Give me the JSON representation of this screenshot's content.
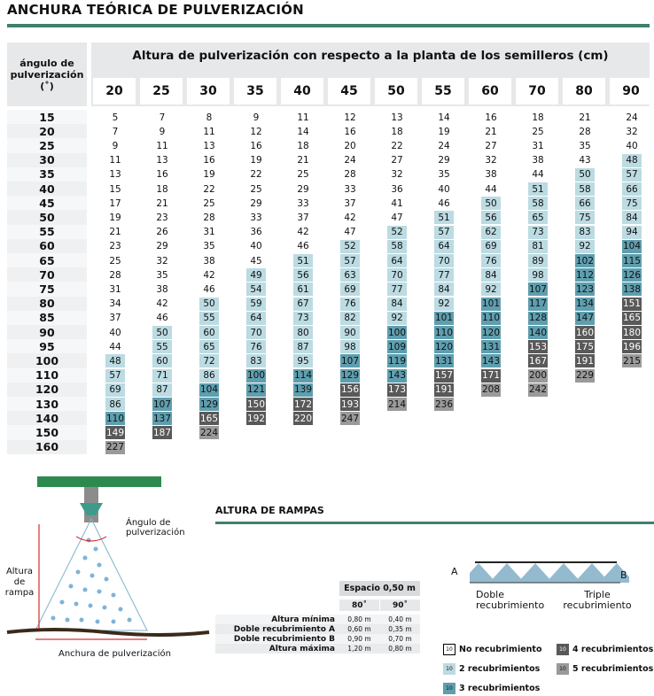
{
  "title": "ANCHURA TEÓRICA DE PULVERIZACIÓN",
  "table": {
    "row_header": "ángulo de pulverización (˚)",
    "column_header": "Altura de pulverización con respecto a la planta de los semilleros (cm)",
    "columns": [
      20,
      25,
      30,
      35,
      40,
      45,
      50,
      55,
      60,
      70,
      80,
      90
    ],
    "rows": [
      {
        "angle": 15,
        "values": [
          5,
          7,
          8,
          9,
          11,
          12,
          13,
          14,
          16,
          18,
          21,
          24
        ],
        "levels": [
          0,
          0,
          0,
          0,
          0,
          0,
          0,
          0,
          0,
          0,
          0,
          0
        ]
      },
      {
        "angle": 20,
        "values": [
          7,
          9,
          11,
          12,
          14,
          16,
          18,
          19,
          21,
          25,
          28,
          32
        ],
        "levels": [
          0,
          0,
          0,
          0,
          0,
          0,
          0,
          0,
          0,
          0,
          0,
          0
        ]
      },
      {
        "angle": 25,
        "values": [
          9,
          11,
          13,
          16,
          18,
          20,
          22,
          24,
          27,
          31,
          35,
          40
        ],
        "levels": [
          0,
          0,
          0,
          0,
          0,
          0,
          0,
          0,
          0,
          0,
          0,
          0
        ]
      },
      {
        "angle": 30,
        "values": [
          11,
          13,
          16,
          19,
          21,
          24,
          27,
          29,
          32,
          38,
          43,
          48
        ],
        "levels": [
          0,
          0,
          0,
          0,
          0,
          0,
          0,
          0,
          0,
          0,
          0,
          1
        ]
      },
      {
        "angle": 35,
        "values": [
          13,
          16,
          19,
          22,
          25,
          28,
          32,
          35,
          38,
          44,
          50,
          57
        ],
        "levels": [
          0,
          0,
          0,
          0,
          0,
          0,
          0,
          0,
          0,
          0,
          1,
          1
        ]
      },
      {
        "angle": 40,
        "values": [
          15,
          18,
          22,
          25,
          29,
          33,
          36,
          40,
          44,
          51,
          58,
          66
        ],
        "levels": [
          0,
          0,
          0,
          0,
          0,
          0,
          0,
          0,
          0,
          1,
          1,
          1
        ]
      },
      {
        "angle": 45,
        "values": [
          17,
          21,
          25,
          29,
          33,
          37,
          41,
          46,
          50,
          58,
          66,
          75
        ],
        "levels": [
          0,
          0,
          0,
          0,
          0,
          0,
          0,
          0,
          1,
          1,
          1,
          1
        ]
      },
      {
        "angle": 50,
        "values": [
          19,
          23,
          28,
          33,
          37,
          42,
          47,
          51,
          56,
          65,
          75,
          84
        ],
        "levels": [
          0,
          0,
          0,
          0,
          0,
          0,
          0,
          1,
          1,
          1,
          1,
          1
        ]
      },
      {
        "angle": 55,
        "values": [
          21,
          26,
          31,
          36,
          42,
          47,
          52,
          57,
          62,
          73,
          83,
          94
        ],
        "levels": [
          0,
          0,
          0,
          0,
          0,
          0,
          1,
          1,
          1,
          1,
          1,
          1
        ]
      },
      {
        "angle": 60,
        "values": [
          23,
          29,
          35,
          40,
          46,
          52,
          58,
          64,
          69,
          81,
          92,
          104
        ],
        "levels": [
          0,
          0,
          0,
          0,
          0,
          1,
          1,
          1,
          1,
          1,
          1,
          2
        ]
      },
      {
        "angle": 65,
        "values": [
          25,
          32,
          38,
          45,
          51,
          57,
          64,
          70,
          76,
          89,
          102,
          115
        ],
        "levels": [
          0,
          0,
          0,
          0,
          1,
          1,
          1,
          1,
          1,
          1,
          2,
          2
        ]
      },
      {
        "angle": 70,
        "values": [
          28,
          35,
          42,
          49,
          56,
          63,
          70,
          77,
          84,
          98,
          112,
          126
        ],
        "levels": [
          0,
          0,
          0,
          1,
          1,
          1,
          1,
          1,
          1,
          1,
          2,
          2
        ]
      },
      {
        "angle": 75,
        "values": [
          31,
          38,
          46,
          54,
          61,
          69,
          77,
          84,
          92,
          107,
          123,
          138
        ],
        "levels": [
          0,
          0,
          0,
          1,
          1,
          1,
          1,
          1,
          1,
          2,
          2,
          2
        ]
      },
      {
        "angle": 80,
        "values": [
          34,
          42,
          50,
          59,
          67,
          76,
          84,
          92,
          101,
          117,
          134,
          151
        ],
        "levels": [
          0,
          0,
          1,
          1,
          1,
          1,
          1,
          1,
          2,
          2,
          2,
          3
        ]
      },
      {
        "angle": 85,
        "values": [
          37,
          46,
          55,
          64,
          73,
          82,
          92,
          101,
          110,
          128,
          147,
          165
        ],
        "levels": [
          0,
          0,
          1,
          1,
          1,
          1,
          1,
          2,
          2,
          2,
          2,
          3
        ]
      },
      {
        "angle": 90,
        "values": [
          40,
          50,
          60,
          70,
          80,
          90,
          100,
          110,
          120,
          140,
          160,
          180
        ],
        "levels": [
          0,
          1,
          1,
          1,
          1,
          1,
          2,
          2,
          2,
          2,
          3,
          3
        ]
      },
      {
        "angle": 95,
        "values": [
          44,
          55,
          65,
          76,
          87,
          98,
          109,
          120,
          131,
          153,
          175,
          196
        ],
        "levels": [
          0,
          1,
          1,
          1,
          1,
          1,
          2,
          2,
          2,
          3,
          3,
          3
        ]
      },
      {
        "angle": 100,
        "values": [
          48,
          60,
          72,
          83,
          95,
          107,
          119,
          131,
          143,
          167,
          191,
          215
        ],
        "levels": [
          1,
          1,
          1,
          1,
          1,
          2,
          2,
          2,
          2,
          3,
          3,
          4
        ]
      },
      {
        "angle": 110,
        "values": [
          57,
          71,
          86,
          100,
          114,
          129,
          143,
          157,
          171,
          200,
          229
        ],
        "levels": [
          1,
          1,
          1,
          2,
          2,
          2,
          2,
          3,
          3,
          4,
          4
        ]
      },
      {
        "angle": 120,
        "values": [
          69,
          87,
          104,
          121,
          139,
          156,
          173,
          191,
          208,
          242
        ],
        "levels": [
          1,
          1,
          2,
          2,
          2,
          3,
          3,
          3,
          4,
          4
        ]
      },
      {
        "angle": 130,
        "values": [
          86,
          107,
          129,
          150,
          172,
          193,
          214,
          236
        ],
        "levels": [
          1,
          2,
          2,
          3,
          3,
          3,
          4,
          4
        ]
      },
      {
        "angle": 140,
        "values": [
          110,
          137,
          165,
          192,
          220,
          247
        ],
        "levels": [
          2,
          2,
          3,
          3,
          3,
          4
        ]
      },
      {
        "angle": 150,
        "values": [
          149,
          187,
          224
        ],
        "levels": [
          3,
          3,
          4
        ]
      },
      {
        "angle": 160,
        "values": [
          227
        ],
        "levels": [
          4
        ]
      }
    ]
  },
  "legend": {
    "sample": "10",
    "items": [
      {
        "label": "No recubrimiento",
        "color": "#ffffff"
      },
      {
        "label": "2 recubrimientos",
        "color": "#bcdbe2"
      },
      {
        "label": "3 recubrimientos",
        "color": "#5f9eae"
      },
      {
        "label": "4 recubrimientos",
        "color": "#595959"
      },
      {
        "label": "5 recubrimientos",
        "color": "#9a9a9a"
      }
    ]
  },
  "diagram": {
    "angle_label": "Ángulo de pulverización",
    "height_label": "Altura de rampa",
    "width_label": "Anchura de pulverización",
    "a": "A",
    "b": "B",
    "double": "Doble recubrimiento",
    "triple": "Triple recubrimiento"
  },
  "rampas": {
    "title": "ALTURA DE RAMPAS",
    "spacing": "Espacio 0,50 m",
    "columns": [
      "80˚",
      "90˚"
    ],
    "rows": [
      {
        "label": "Altura mínima",
        "values": [
          "0,80 m",
          "0,40 m"
        ]
      },
      {
        "label": "Doble recubrimiento A",
        "values": [
          "0,60 m",
          "0,35 m"
        ]
      },
      {
        "label": "Doble recubrimiento B",
        "values": [
          "0,90 m",
          "0,70 m"
        ]
      },
      {
        "label": "Altura máxima",
        "values": [
          "1,20 m",
          "0,80 m"
        ]
      }
    ]
  }
}
